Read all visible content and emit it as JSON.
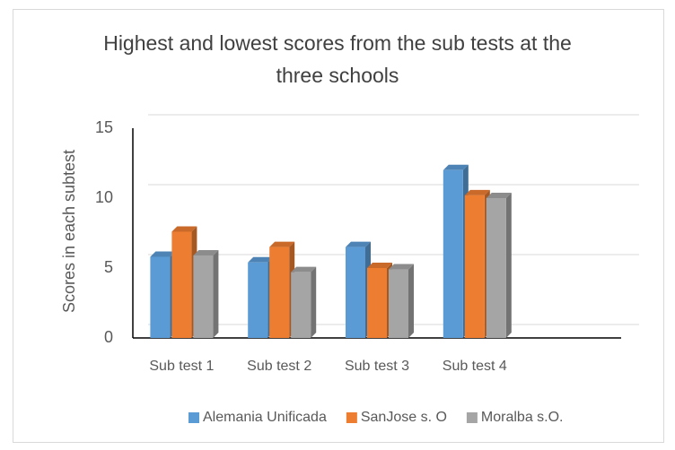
{
  "chart_data": {
    "type": "bar3d",
    "title": "Highest and lowest scores from the sub tests at the three schools",
    "y_label": "Scores in each subtest",
    "categories": [
      "Sub test 1",
      "Sub test 2",
      "Sub test 3",
      "Sub test 4",
      null
    ],
    "series": [
      {
        "name": "Alemania Unificada",
        "color": "#5b9bd5",
        "values": [
          5.8,
          5.4,
          6.5,
          12.0,
          null
        ]
      },
      {
        "name": "SanJose s. O",
        "color": "#ed7d31",
        "values": [
          7.6,
          6.5,
          5.0,
          10.2,
          null
        ]
      },
      {
        "name": "Moralba s.O.",
        "color": "#a5a5a5",
        "values": [
          5.9,
          4.7,
          4.9,
          10.0,
          null
        ]
      }
    ],
    "ylim": [
      0,
      15
    ],
    "yticks": [
      0,
      5,
      10,
      15
    ],
    "grid": true,
    "legend": "bottom"
  }
}
